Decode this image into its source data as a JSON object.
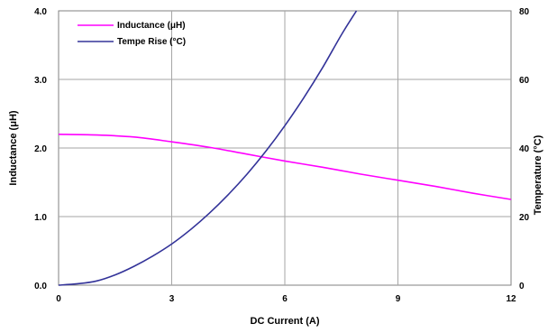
{
  "chart_data": {
    "type": "line",
    "xlabel": "DC Current (A)",
    "ylabel_left": "Inductance (μH)",
    "ylabel_right": "Temperature (°C)",
    "xlim": [
      0,
      12
    ],
    "ylim_left": [
      0,
      4
    ],
    "ylim_right": [
      0,
      80
    ],
    "xticks": [
      "0",
      "3",
      "6",
      "9",
      "12"
    ],
    "yticks_left": [
      "0.0",
      "1.0",
      "2.0",
      "3.0",
      "4.0"
    ],
    "yticks_right": [
      "0",
      "20",
      "40",
      "60",
      "80"
    ],
    "grid": true,
    "legend_position": "top-left",
    "series": [
      {
        "name": "Inductance (μH)",
        "axis": "left",
        "color": "#ff00ff",
        "x": [
          0,
          1,
          2,
          3,
          4,
          5,
          6,
          7,
          8,
          9,
          10,
          11,
          12
        ],
        "y": [
          2.2,
          2.19,
          2.16,
          2.09,
          2.01,
          1.91,
          1.81,
          1.72,
          1.62,
          1.53,
          1.44,
          1.34,
          1.25
        ]
      },
      {
        "name": "Tempe Rise (°C)",
        "axis": "right",
        "color": "#333399",
        "x": [
          0,
          0.5,
          1,
          1.5,
          2,
          2.5,
          3,
          3.5,
          4,
          4.5,
          5,
          5.5,
          6,
          6.5,
          7,
          7.5,
          7.9
        ],
        "y": [
          0,
          0.4,
          1.2,
          3.0,
          5.5,
          8.5,
          12,
          16.2,
          21,
          26.4,
          32.4,
          39.1,
          46.5,
          54.6,
          63.4,
          73,
          80
        ]
      }
    ]
  }
}
